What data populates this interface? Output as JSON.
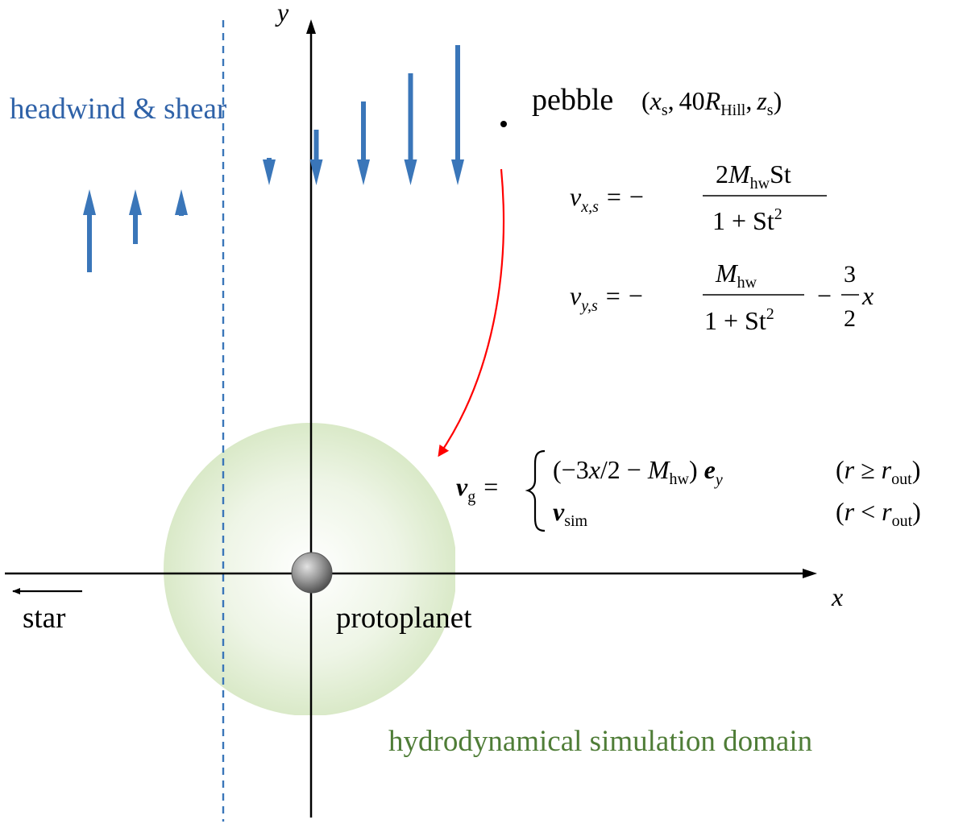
{
  "labels": {
    "y_axis": "y",
    "x_axis": "x",
    "headwind": "headwind & shear",
    "pebble": "pebble",
    "star": "star",
    "protoplanet": "protoplanet",
    "domain": "hydrodynamical simulation domain"
  },
  "equations": {
    "pebble_pos": {
      "open": "(",
      "xs_base": "x",
      "xs_sub": "s",
      "sep1": ",",
      "r_coef": "40",
      "r_base": "R",
      "r_sub": "Hill",
      "sep2": ",",
      "zs_base": "z",
      "zs_sub": "s",
      "close": ")"
    },
    "vx": {
      "lhs_base": "v",
      "lhs_sub": "x,s",
      "eq": "=",
      "sign": "−",
      "num_coef": "2",
      "num_M": "M",
      "num_M_sub": "hw",
      "num_St": "St",
      "den": "1 + St",
      "den_sup": "2"
    },
    "vy": {
      "lhs_base": "v",
      "lhs_sub": "y,s",
      "eq": "=",
      "sign": "−",
      "num_M": "M",
      "num_M_sub": "hw",
      "den": "1 + St",
      "den_sup": "2",
      "minus": "−",
      "frac2_num": "3",
      "frac2_den": "2",
      "x": "x"
    },
    "vg": {
      "lhs_base": "v",
      "lhs_sub": "g",
      "eq": "=",
      "case1_a": "(−3",
      "case1_x": "x",
      "case1_b": "/2 − ",
      "case1_M": "M",
      "case1_M_sub": "hw",
      "case1_c": ")",
      "case1_e": "e",
      "case1_e_sub": "y",
      "case2_v": "v",
      "case2_v_sub": "sim",
      "cond1_a": "(",
      "cond1_r": "r",
      "cond1_op": " ≥ ",
      "cond1_rout": "r",
      "cond1_rout_sub": "out",
      "cond1_b": ")",
      "cond2_a": "(",
      "cond2_r": "r",
      "cond2_op": " < ",
      "cond2_rout": "r",
      "cond2_rout_sub": "out",
      "cond2_b": ")"
    }
  },
  "colors": {
    "flow_arrows": "#3a76b9",
    "headwind_text": "#2f62a8",
    "domain_text": "#4f7d37",
    "domain_fill": "#d6e8c4",
    "trajectory": "#ff0000",
    "axes": "#000000"
  },
  "flow_arrows": {
    "up": [
      {
        "direction": "up",
        "strength": 3
      },
      {
        "direction": "up",
        "strength": 2
      },
      {
        "direction": "up",
        "strength": 1
      }
    ],
    "down": [
      {
        "direction": "down",
        "strength": 0
      },
      {
        "direction": "down",
        "strength": 1
      },
      {
        "direction": "down",
        "strength": 2
      },
      {
        "direction": "down",
        "strength": 3
      },
      {
        "direction": "down",
        "strength": 4
      }
    ]
  }
}
